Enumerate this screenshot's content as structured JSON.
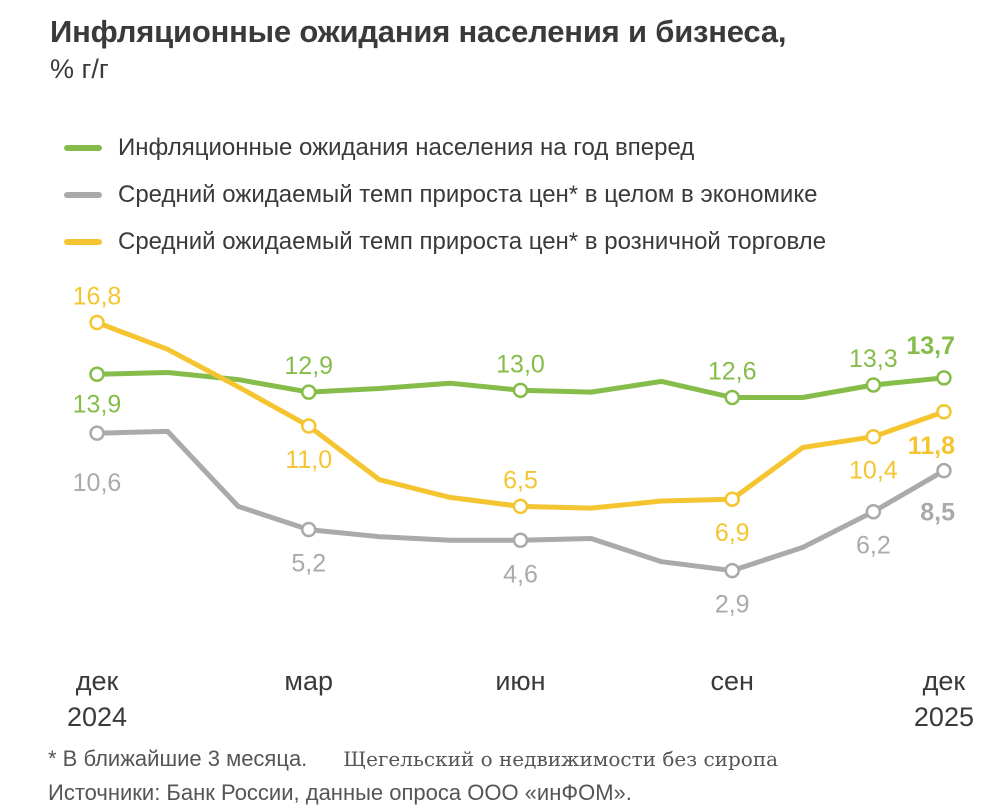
{
  "title": "Инфляционные ожидания населения и бизнеса,",
  "subtitle": "% г/г",
  "footnote": "* В ближайшие 3 месяца.",
  "watermark": "Щегельский о недвижимости без сиропа",
  "source": "Источники: Банк России, данные опроса ООО «инФОМ».",
  "colors": {
    "green": "#86bd4a",
    "gray": "#a9aaaa",
    "yellow": "#f4c531",
    "axis_text": "#3a3a3a"
  },
  "chart_data": {
    "type": "line",
    "x": [
      "2024-12",
      "2025-01",
      "2025-02",
      "2025-03",
      "2025-04",
      "2025-05",
      "2025-06",
      "2025-07",
      "2025-08",
      "2025-09",
      "2025-10",
      "2025-11",
      "2025-12"
    ],
    "x_tick_labels": [
      {
        "month": "дек",
        "year": "2024"
      },
      {
        "month": "мар",
        "year": ""
      },
      {
        "month": "июн",
        "year": ""
      },
      {
        "month": "сен",
        "year": ""
      },
      {
        "month": "дек",
        "year": "2025"
      }
    ],
    "x_tick_indices": [
      0,
      3,
      6,
      9,
      12
    ],
    "ylim": [
      0,
      20
    ],
    "grid": false,
    "legend_position": "top",
    "series": [
      {
        "name": "Инфляционные ожидания населения на год вперед",
        "color": "#86bd4a",
        "values": [
          13.9,
          14.0,
          13.6,
          12.9,
          13.1,
          13.4,
          13.0,
          12.9,
          13.5,
          12.6,
          12.6,
          13.3,
          13.7
        ],
        "labels": [
          {
            "i": 0,
            "text": "13,9",
            "pos": "below",
            "bold": false
          },
          {
            "i": 3,
            "text": "12,9",
            "pos": "above",
            "bold": false
          },
          {
            "i": 6,
            "text": "13,0",
            "pos": "above",
            "bold": false
          },
          {
            "i": 9,
            "text": "12,6",
            "pos": "above",
            "bold": false
          },
          {
            "i": 11,
            "text": "13,3",
            "pos": "above",
            "bold": false
          },
          {
            "i": 12,
            "text": "13,7",
            "pos": "above",
            "bold": true
          }
        ]
      },
      {
        "name": "Средний ожидаемый темп прироста цен* в целом в экономике",
        "color": "#a9aaaa",
        "values": [
          10.6,
          10.7,
          6.5,
          5.2,
          4.8,
          4.6,
          4.6,
          4.7,
          3.4,
          2.9,
          4.2,
          6.2,
          8.5
        ],
        "labels": [
          {
            "i": 0,
            "text": "10,6",
            "pos": "below",
            "bold": false
          },
          {
            "i": 3,
            "text": "5,2",
            "pos": "below",
            "bold": false
          },
          {
            "i": 6,
            "text": "4,6",
            "pos": "below",
            "bold": false
          },
          {
            "i": 9,
            "text": "2,9",
            "pos": "below",
            "bold": false
          },
          {
            "i": 11,
            "text": "6,2",
            "pos": "below",
            "bold": false
          },
          {
            "i": 12,
            "text": "8,5",
            "pos": "below",
            "bold": true
          }
        ]
      },
      {
        "name": "Средний ожидаемый темп прироста цен* в розничной торговле",
        "color": "#f4c531",
        "values": [
          16.8,
          15.3,
          13.2,
          11.0,
          8.0,
          7.0,
          6.5,
          6.4,
          6.8,
          6.9,
          9.8,
          10.4,
          11.8
        ],
        "labels": [
          {
            "i": 0,
            "text": "16,8",
            "pos": "above",
            "bold": false
          },
          {
            "i": 3,
            "text": "11,0",
            "pos": "below",
            "bold": false
          },
          {
            "i": 6,
            "text": "6,5",
            "pos": "above",
            "bold": false
          },
          {
            "i": 9,
            "text": "6,9",
            "pos": "below",
            "bold": false
          },
          {
            "i": 11,
            "text": "10,4",
            "pos": "below",
            "bold": false
          },
          {
            "i": 12,
            "text": "11,8",
            "pos": "below",
            "bold": true
          }
        ]
      }
    ]
  }
}
